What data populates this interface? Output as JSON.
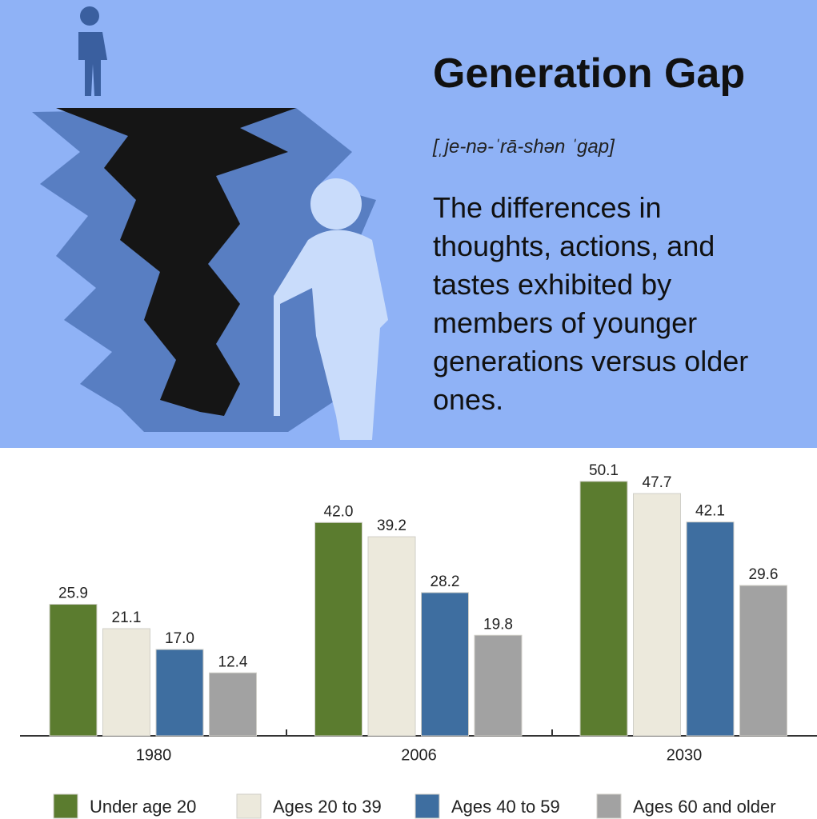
{
  "chart_data": {
    "type": "bar",
    "title": "Generation Gap",
    "subtitle": "[ˌje-nə-ˈrā-shən ˈgap]",
    "description": "The differences in thoughts, actions, and tastes exhibited by members of younger generations versus older ones.",
    "categories": [
      "1980",
      "2006",
      "2030"
    ],
    "series": [
      {
        "name": "Under age 20",
        "color": "#5b7c2f",
        "values": [
          25.9,
          42.0,
          50.1
        ],
        "value_labels": [
          "25.9",
          "42.0",
          "50.1"
        ]
      },
      {
        "name": "Ages 20 to 39",
        "color": "#ece9dc",
        "values": [
          21.1,
          39.2,
          47.7
        ],
        "value_labels": [
          "21.1",
          "39.2",
          "47.7"
        ]
      },
      {
        "name": "Ages 40 to 59",
        "color": "#3e6ea0",
        "values": [
          17.0,
          28.2,
          42.1
        ],
        "value_labels": [
          "17.0",
          "28.2",
          "42.1"
        ]
      },
      {
        "name": "Ages 60 and older",
        "color": "#a2a2a2",
        "values": [
          12.4,
          19.8,
          29.6
        ],
        "value_labels": [
          "12.4",
          "19.8",
          "29.6"
        ]
      }
    ],
    "ylim": [
      0,
      55
    ],
    "legend": "bottom"
  }
}
